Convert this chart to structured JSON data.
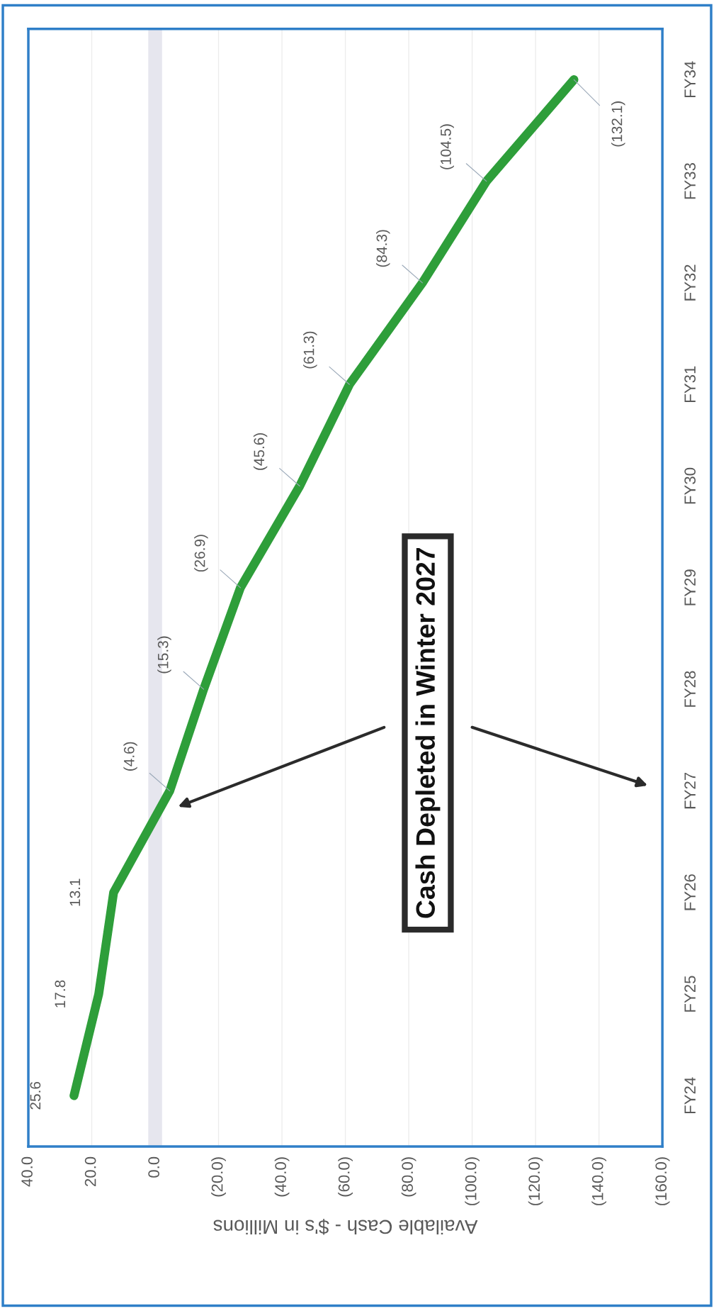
{
  "chart_data": {
    "type": "line",
    "orientation": "horizontal",
    "xlabel": "Available Cash - $'s in Millions",
    "categories": [
      "FY34",
      "FY33",
      "FY32",
      "FY31",
      "FY30",
      "FY29",
      "FY28",
      "FY27",
      "FY26",
      "FY25",
      "FY24"
    ],
    "series": [
      {
        "color": "#2e9e3a",
        "values": [
          -132.1,
          -104.5,
          -84.3,
          -61.3,
          -45.6,
          -26.9,
          -15.3,
          -4.6,
          13.1,
          17.8,
          25.6
        ],
        "value_labels": [
          "(132.1)",
          "(104.5)",
          "(84.3)",
          "(61.3)",
          "(45.6)",
          "(26.9)",
          "(15.3)",
          "(4.6)",
          "13.1",
          "17.8",
          "25.6"
        ]
      }
    ],
    "xlim": [
      40,
      -160
    ],
    "xticks": [
      {
        "value": 40,
        "label": "40.0"
      },
      {
        "value": 20,
        "label": "20.0"
      },
      {
        "value": 0,
        "label": "0.0"
      },
      {
        "value": -20,
        "label": "(20.0)"
      },
      {
        "value": -40,
        "label": "(40.0)"
      },
      {
        "value": -60,
        "label": "(60.0)"
      },
      {
        "value": -80,
        "label": "(80.0)"
      },
      {
        "value": -100,
        "label": "(100.0)"
      },
      {
        "value": -120,
        "label": "(120.0)"
      },
      {
        "value": -140,
        "label": "(140.0)"
      },
      {
        "value": -160,
        "label": "(160.0)"
      }
    ],
    "grid": "x",
    "line_style": "solid",
    "ref_lines": [
      {
        "axis": "x",
        "value": 0,
        "color": "#e6e6ee"
      }
    ],
    "annotations": [
      "Cash Depleted in Winter 2027"
    ]
  }
}
